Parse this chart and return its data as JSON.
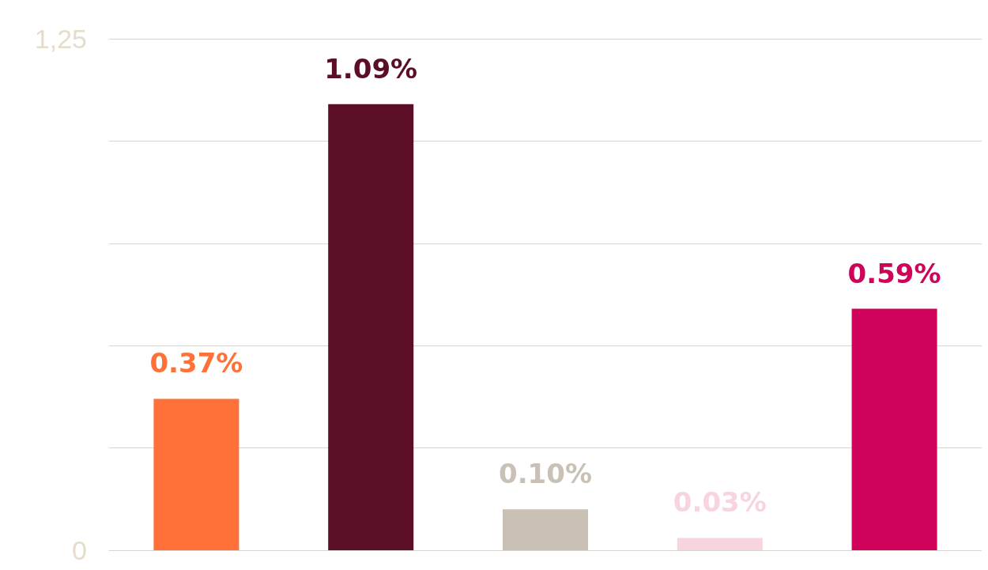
{
  "chart_data": {
    "type": "bar",
    "categories": [
      null,
      null,
      null,
      null,
      null
    ],
    "values": [
      0.37,
      1.09,
      0.1,
      0.03,
      0.59
    ],
    "colors": [
      "#ff7139",
      "#5a0f27",
      "#c9c1b5",
      "#f7d4de",
      "#d0035a"
    ],
    "value_labels": [
      "0.37%",
      "1.09%",
      "0.10%",
      "0.03%",
      "0.59%"
    ],
    "ylim": [
      0,
      1.25
    ],
    "yticks": [
      {
        "value": 0,
        "label": "0"
      },
      {
        "value": 0.25,
        "label": null
      },
      {
        "value": 0.5,
        "label": null
      },
      {
        "value": 0.75,
        "label": null
      },
      {
        "value": 1,
        "label": null
      },
      {
        "value": 1.25,
        "label": "1,25"
      }
    ],
    "grid": "y"
  }
}
